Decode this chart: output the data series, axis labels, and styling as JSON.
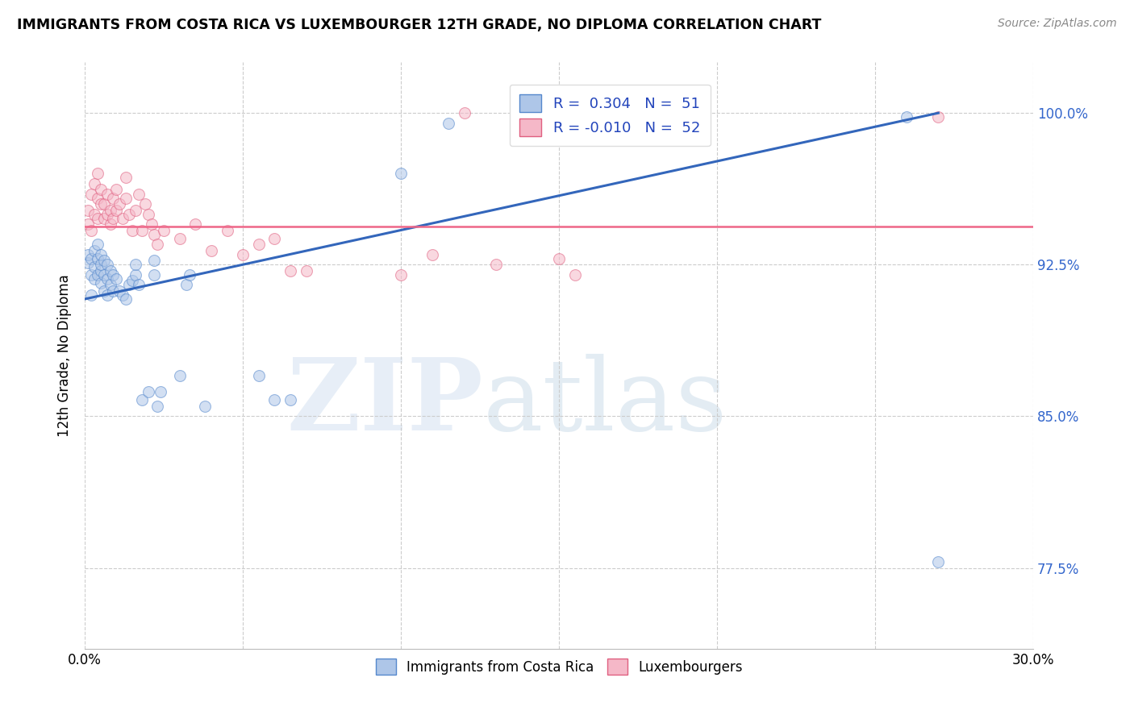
{
  "title": "IMMIGRANTS FROM COSTA RICA VS LUXEMBOURGER 12TH GRADE, NO DIPLOMA CORRELATION CHART",
  "source": "Source: ZipAtlas.com",
  "ylabel": "12th Grade, No Diploma",
  "legend_blue_label": "Immigrants from Costa Rica",
  "legend_pink_label": "Luxembourgers",
  "blue_color": "#aec6e8",
  "pink_color": "#f5b8c8",
  "blue_edge_color": "#5588cc",
  "pink_edge_color": "#e06080",
  "blue_line_color": "#3366bb",
  "pink_line_color": "#ee6688",
  "watermark_zip": "ZIP",
  "watermark_atlas": "atlas",
  "xlim": [
    0.0,
    0.3
  ],
  "ylim": [
    0.735,
    1.025
  ],
  "yticks": [
    0.775,
    0.85,
    0.925,
    1.0
  ],
  "ytick_labels": [
    "77.5%",
    "85.0%",
    "92.5%",
    "100.0%"
  ],
  "xticks": [
    0.0,
    0.05,
    0.1,
    0.15,
    0.2,
    0.25,
    0.3
  ],
  "blue_scatter_x": [
    0.001,
    0.001,
    0.002,
    0.002,
    0.002,
    0.003,
    0.003,
    0.003,
    0.004,
    0.004,
    0.004,
    0.005,
    0.005,
    0.005,
    0.005,
    0.006,
    0.006,
    0.006,
    0.007,
    0.007,
    0.007,
    0.008,
    0.008,
    0.009,
    0.009,
    0.01,
    0.011,
    0.012,
    0.013,
    0.014,
    0.015,
    0.016,
    0.016,
    0.017,
    0.018,
    0.02,
    0.022,
    0.022,
    0.023,
    0.024,
    0.03,
    0.032,
    0.033,
    0.038,
    0.055,
    0.06,
    0.065,
    0.1,
    0.115,
    0.26,
    0.27
  ],
  "blue_scatter_y": [
    0.926,
    0.93,
    0.91,
    0.92,
    0.928,
    0.918,
    0.924,
    0.932,
    0.92,
    0.928,
    0.935,
    0.916,
    0.922,
    0.925,
    0.93,
    0.912,
    0.92,
    0.927,
    0.91,
    0.918,
    0.925,
    0.915,
    0.922,
    0.912,
    0.92,
    0.918,
    0.912,
    0.91,
    0.908,
    0.915,
    0.917,
    0.92,
    0.925,
    0.915,
    0.858,
    0.862,
    0.92,
    0.927,
    0.855,
    0.862,
    0.87,
    0.915,
    0.92,
    0.855,
    0.87,
    0.858,
    0.858,
    0.97,
    0.995,
    0.998,
    0.778
  ],
  "pink_scatter_x": [
    0.001,
    0.001,
    0.002,
    0.002,
    0.003,
    0.003,
    0.004,
    0.004,
    0.004,
    0.005,
    0.005,
    0.006,
    0.006,
    0.007,
    0.007,
    0.008,
    0.008,
    0.009,
    0.009,
    0.01,
    0.01,
    0.011,
    0.012,
    0.013,
    0.013,
    0.014,
    0.015,
    0.016,
    0.017,
    0.018,
    0.019,
    0.02,
    0.021,
    0.022,
    0.023,
    0.025,
    0.03,
    0.035,
    0.04,
    0.045,
    0.05,
    0.055,
    0.06,
    0.065,
    0.07,
    0.1,
    0.11,
    0.12,
    0.13,
    0.15,
    0.155,
    0.27
  ],
  "pink_scatter_y": [
    0.945,
    0.952,
    0.942,
    0.96,
    0.95,
    0.965,
    0.948,
    0.958,
    0.97,
    0.955,
    0.962,
    0.948,
    0.955,
    0.95,
    0.96,
    0.945,
    0.952,
    0.948,
    0.958,
    0.952,
    0.962,
    0.955,
    0.948,
    0.958,
    0.968,
    0.95,
    0.942,
    0.952,
    0.96,
    0.942,
    0.955,
    0.95,
    0.945,
    0.94,
    0.935,
    0.942,
    0.938,
    0.945,
    0.932,
    0.942,
    0.93,
    0.935,
    0.938,
    0.922,
    0.922,
    0.92,
    0.93,
    1.0,
    0.925,
    0.928,
    0.92,
    0.998
  ],
  "blue_line_x": [
    0.0,
    0.27
  ],
  "blue_line_y": [
    0.908,
    1.0
  ],
  "pink_line_y": 0.944,
  "marker_size": 100,
  "marker_alpha": 0.55
}
